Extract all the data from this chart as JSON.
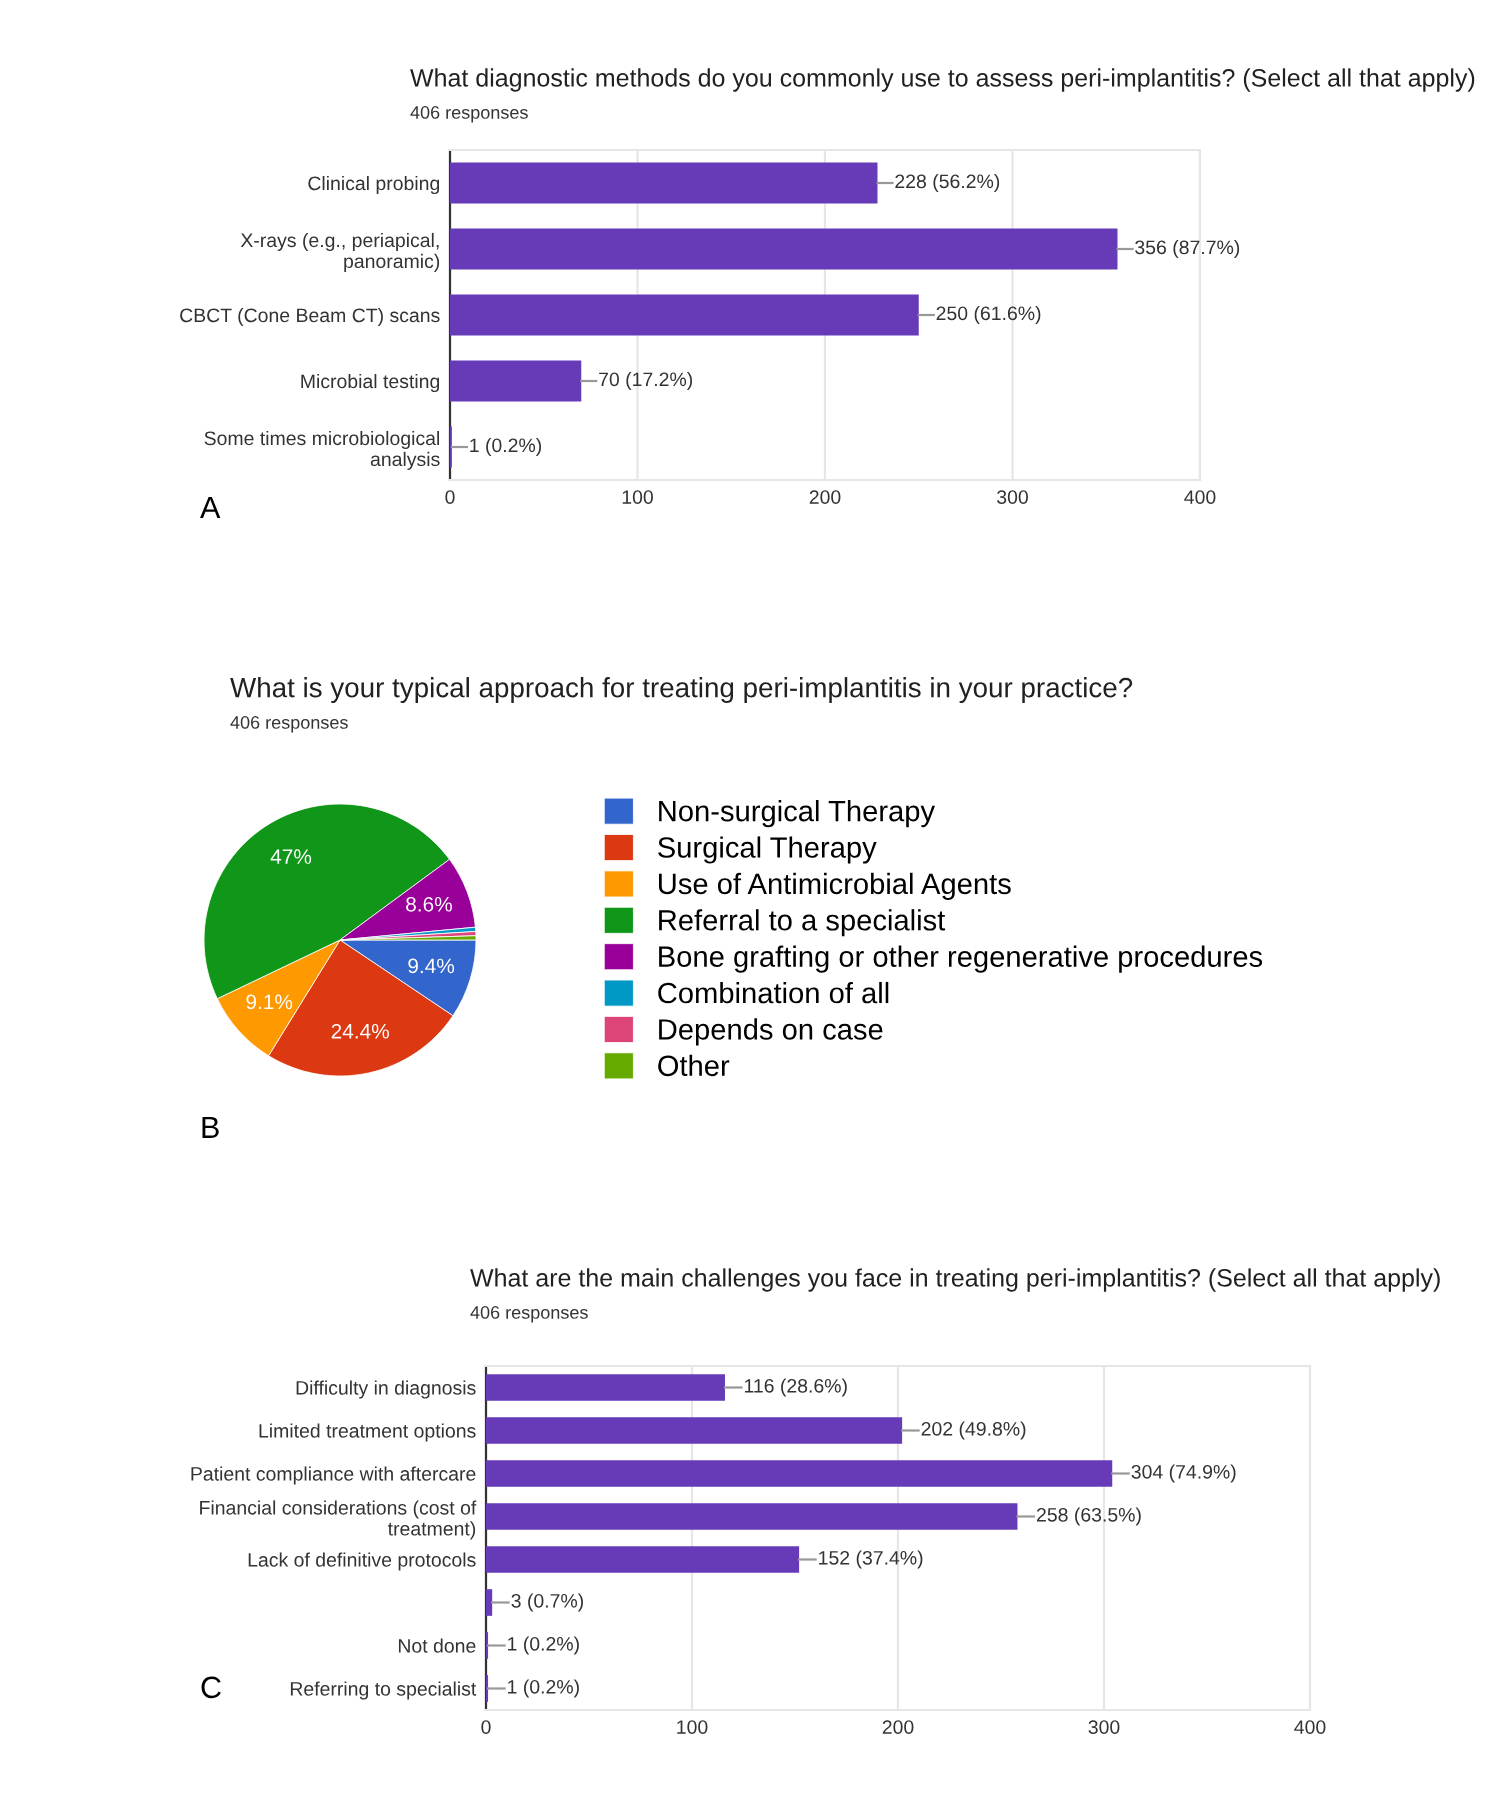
{
  "chart_data": [
    {
      "type": "bar",
      "orientation": "horizontal",
      "title": "What diagnostic methods do you commonly use to assess peri-implantitis? (Select all that apply)",
      "subtitle": "406 responses",
      "categories": [
        "Clinical probing",
        "X-rays (e.g., periapical,\npanoramic)",
        "CBCT (Cone Beam CT) scans",
        "Microbial testing",
        "Some times microbiological\nanalysis"
      ],
      "values": [
        228,
        356,
        250,
        70,
        1
      ],
      "color": "#673ab7",
      "value_labels": [
        "228 (56.2%)",
        "356 (87.7%)",
        "250 (61.6%)",
        "70 (17.2%)",
        "1 (0.2%)"
      ],
      "xlim": [
        0,
        400
      ],
      "xticks": [
        0,
        100,
        200,
        300,
        400
      ],
      "grid": "x",
      "annotations": [
        "A"
      ]
    },
    {
      "type": "pie",
      "title": "What is your typical approach for treating peri-implantitis in your practice?",
      "subtitle": "406 responses",
      "categories": [
        "Non-surgical Therapy",
        "Surgical Therapy",
        "Use of Antimicrobial Agents",
        "Referral to a specialist",
        "Bone grafting or other regenerative procedures",
        "Combination of all",
        "Depends on case",
        "Other"
      ],
      "values": [
        9.4,
        24.4,
        9.1,
        47,
        8.6,
        0.5,
        0.5,
        0.5
      ],
      "colors": [
        "#3366cc",
        "#dc3912",
        "#ff9900",
        "#109618",
        "#990099",
        "#0099c6",
        "#dd4477",
        "#66aa00"
      ],
      "value_labels": [
        "9.4%",
        "24.4%",
        "9.1%",
        "47%",
        "8.6%",
        null,
        null,
        null
      ],
      "legend": "right",
      "annotations": [
        "B"
      ]
    },
    {
      "type": "bar",
      "orientation": "horizontal",
      "title": "What are the main challenges you face in treating peri-implantitis? (Select all that apply)",
      "subtitle": "406 responses",
      "categories": [
        "Difficulty in diagnosis",
        "Limited treatment options",
        "Patient compliance with aftercare",
        "Financial considerations (cost of\ntreatment)",
        "Lack of definitive protocols",
        null,
        "Not done",
        "Referring to specialist"
      ],
      "values": [
        116,
        202,
        304,
        258,
        152,
        3,
        1,
        1
      ],
      "color": "#673ab7",
      "value_labels": [
        "116 (28.6%)",
        "202 (49.8%)",
        "304 (74.9%)",
        "258 (63.5%)",
        "152 (37.4%)",
        "3 (0.7%)",
        "1 (0.2%)",
        "1 (0.2%)"
      ],
      "xlim": [
        0,
        400
      ],
      "xticks": [
        0,
        100,
        200,
        300,
        400
      ],
      "grid": "x",
      "annotations": [
        "C"
      ]
    }
  ]
}
